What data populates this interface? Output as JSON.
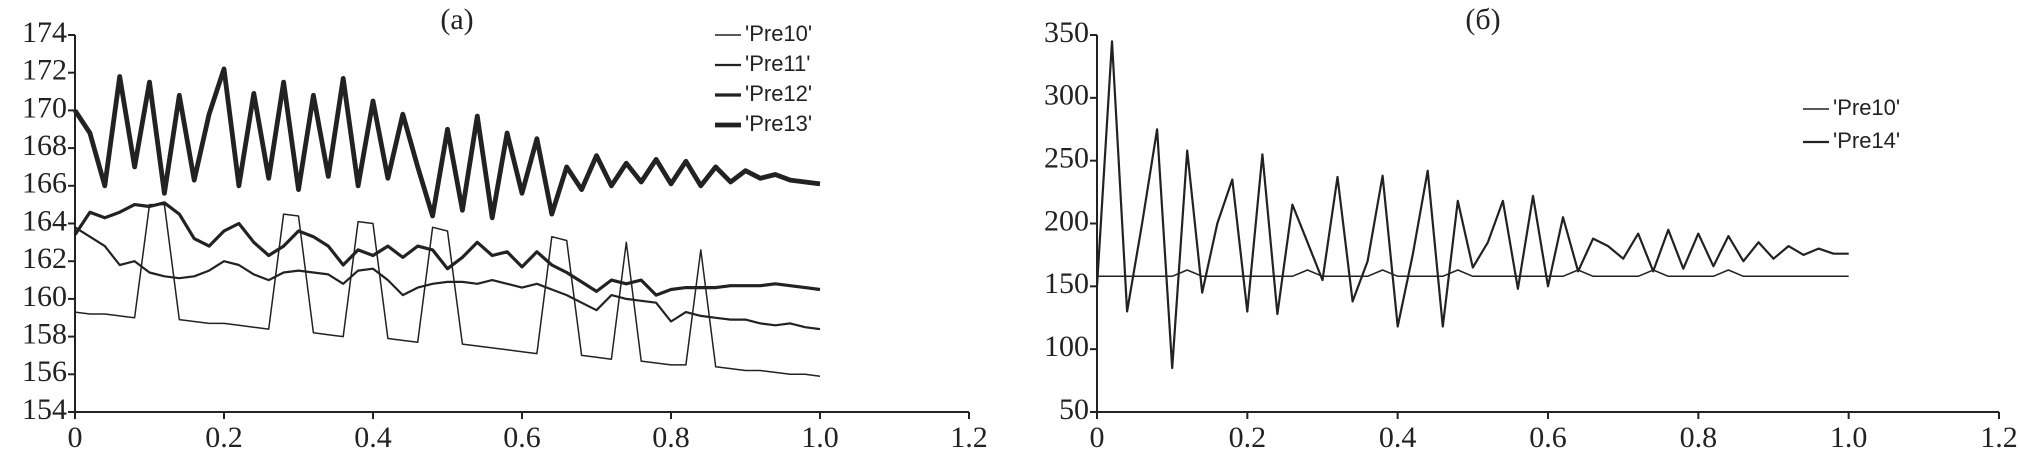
{
  "chart_data": [
    {
      "type": "line",
      "title": "(a)",
      "legend": "upper right",
      "xlim": [
        0,
        1.2
      ],
      "xticks": [
        0,
        0.2,
        0.4,
        0.6,
        0.8,
        {
          "value": 1,
          "label": "1.0"
        },
        1.2
      ],
      "ylim": [
        154,
        174
      ],
      "yticks": [
        154,
        156,
        158,
        160,
        162,
        164,
        166,
        168,
        170,
        172,
        174
      ],
      "x": [
        0,
        0.02,
        0.04,
        0.06,
        0.08,
        0.1,
        0.12,
        0.14,
        0.16,
        0.18,
        0.2,
        0.22,
        0.24,
        0.26,
        0.28,
        0.3,
        0.32,
        0.34,
        0.36,
        0.38,
        0.4,
        0.42,
        0.44,
        0.46,
        0.48,
        0.5,
        0.52,
        0.54,
        0.56,
        0.58,
        0.6,
        0.62,
        0.64,
        0.66,
        0.68,
        0.7,
        0.72,
        0.74,
        0.76,
        0.78,
        0.8,
        0.82,
        0.84,
        0.86,
        0.88,
        0.9,
        0.92,
        0.94,
        0.96,
        0.98,
        1.0
      ],
      "series": [
        {
          "name": "'Pre10'",
          "color": "#222222",
          "line_width": 1.5,
          "values": [
            159.3,
            159.2,
            159.2,
            159.1,
            159.0,
            165.0,
            165.0,
            158.9,
            158.8,
            158.7,
            158.7,
            158.6,
            158.5,
            158.4,
            164.5,
            164.4,
            158.2,
            158.1,
            158.0,
            164.1,
            164.0,
            157.9,
            157.8,
            157.7,
            163.8,
            163.6,
            157.6,
            157.5,
            157.4,
            157.3,
            157.2,
            157.1,
            163.3,
            163.1,
            157.0,
            156.9,
            156.8,
            163.0,
            156.7,
            156.6,
            156.5,
            156.5,
            162.6,
            156.4,
            156.3,
            156.2,
            156.2,
            156.1,
            156.0,
            156.0,
            155.9
          ]
        },
        {
          "name": "'Pre11'",
          "color": "#222222",
          "line_width": 2.2,
          "values": [
            163.8,
            163.3,
            162.8,
            161.8,
            162.0,
            161.4,
            161.2,
            161.1,
            161.2,
            161.5,
            162.0,
            161.8,
            161.3,
            161.0,
            161.4,
            161.5,
            161.4,
            161.3,
            160.8,
            161.5,
            161.6,
            161.0,
            160.2,
            160.6,
            160.8,
            160.9,
            160.9,
            160.8,
            161.0,
            160.8,
            160.6,
            160.8,
            160.5,
            160.2,
            159.8,
            159.4,
            160.2,
            160.0,
            159.9,
            159.8,
            158.8,
            159.3,
            159.1,
            159.0,
            158.9,
            158.9,
            158.7,
            158.6,
            158.7,
            158.5,
            158.4
          ]
        },
        {
          "name": "'Pre12'",
          "color": "#222222",
          "line_width": 3.2,
          "values": [
            163.4,
            164.6,
            164.3,
            164.6,
            165.0,
            164.9,
            165.1,
            164.5,
            163.2,
            162.8,
            163.6,
            164.0,
            163.0,
            162.3,
            162.8,
            163.6,
            163.3,
            162.8,
            161.8,
            162.6,
            162.3,
            162.8,
            162.2,
            162.8,
            162.6,
            161.6,
            162.2,
            163.0,
            162.3,
            162.5,
            161.7,
            162.5,
            161.8,
            161.4,
            160.9,
            160.4,
            161.0,
            160.8,
            161.0,
            160.2,
            160.5,
            160.6,
            160.6,
            160.6,
            160.7,
            160.7,
            160.7,
            160.8,
            160.7,
            160.6,
            160.5
          ]
        },
        {
          "name": "'Pre13'",
          "color": "#222222",
          "line_width": 4.8,
          "values": [
            170,
            168.8,
            166.0,
            171.8,
            167.0,
            171.5,
            165.6,
            170.8,
            166.3,
            169.8,
            172.2,
            166.0,
            170.9,
            166.4,
            171.5,
            165.8,
            170.8,
            166.5,
            171.7,
            166.0,
            170.5,
            166.4,
            169.8,
            167.0,
            164.4,
            169.0,
            164.7,
            169.7,
            164.3,
            168.8,
            165.6,
            168.5,
            164.5,
            167.0,
            165.8,
            167.6,
            166.0,
            167.2,
            166.2,
            167.4,
            166.1,
            167.3,
            166.0,
            167.0,
            166.2,
            166.8,
            166.4,
            166.6,
            166.3,
            166.2,
            166.1
          ]
        }
      ]
    },
    {
      "type": "line",
      "title": "(б)",
      "legend": "upper right",
      "xlim": [
        0,
        1.2
      ],
      "xticks": [
        0,
        0.2,
        0.4,
        0.6,
        0.8,
        {
          "value": 1,
          "label": "1.0"
        },
        1.2
      ],
      "ylim": [
        50,
        350
      ],
      "yticks": [
        50,
        100,
        150,
        200,
        250,
        300,
        350
      ],
      "x": [
        0,
        0.02,
        0.04,
        0.06,
        0.08,
        0.1,
        0.12,
        0.14,
        0.16,
        0.18,
        0.2,
        0.22,
        0.24,
        0.26,
        0.28,
        0.3,
        0.32,
        0.34,
        0.36,
        0.38,
        0.4,
        0.42,
        0.44,
        0.46,
        0.48,
        0.5,
        0.52,
        0.54,
        0.56,
        0.58,
        0.6,
        0.62,
        0.64,
        0.66,
        0.68,
        0.7,
        0.72,
        0.74,
        0.76,
        0.78,
        0.8,
        0.82,
        0.84,
        0.86,
        0.88,
        0.9,
        0.92,
        0.94,
        0.96,
        0.98,
        1.0
      ],
      "series": [
        {
          "name": "'Pre10'",
          "color": "#222222",
          "line_width": 1.5,
          "values": [
            158,
            158,
            158,
            158,
            158,
            158,
            163,
            158,
            158,
            158,
            158,
            158,
            158,
            158,
            163,
            158,
            158,
            158,
            158,
            163,
            158,
            158,
            158,
            158,
            163,
            158,
            158,
            158,
            158,
            158,
            158,
            158,
            163,
            158,
            158,
            158,
            158,
            163,
            158,
            158,
            158,
            158,
            163,
            158,
            158,
            158,
            158,
            158,
            158,
            158,
            158
          ]
        },
        {
          "name": "'Pre14'",
          "color": "#222222",
          "line_width": 2.2,
          "values": [
            150,
            345,
            130,
            200,
            275,
            85,
            258,
            145,
            200,
            235,
            130,
            255,
            128,
            215,
            185,
            155,
            237,
            138,
            170,
            238,
            118,
            175,
            242,
            118,
            218,
            165,
            185,
            218,
            148,
            222,
            150,
            205,
            162,
            188,
            182,
            172,
            192,
            162,
            195,
            164,
            192,
            166,
            190,
            170,
            185,
            172,
            182,
            175,
            180,
            176,
            176
          ]
        }
      ]
    }
  ]
}
